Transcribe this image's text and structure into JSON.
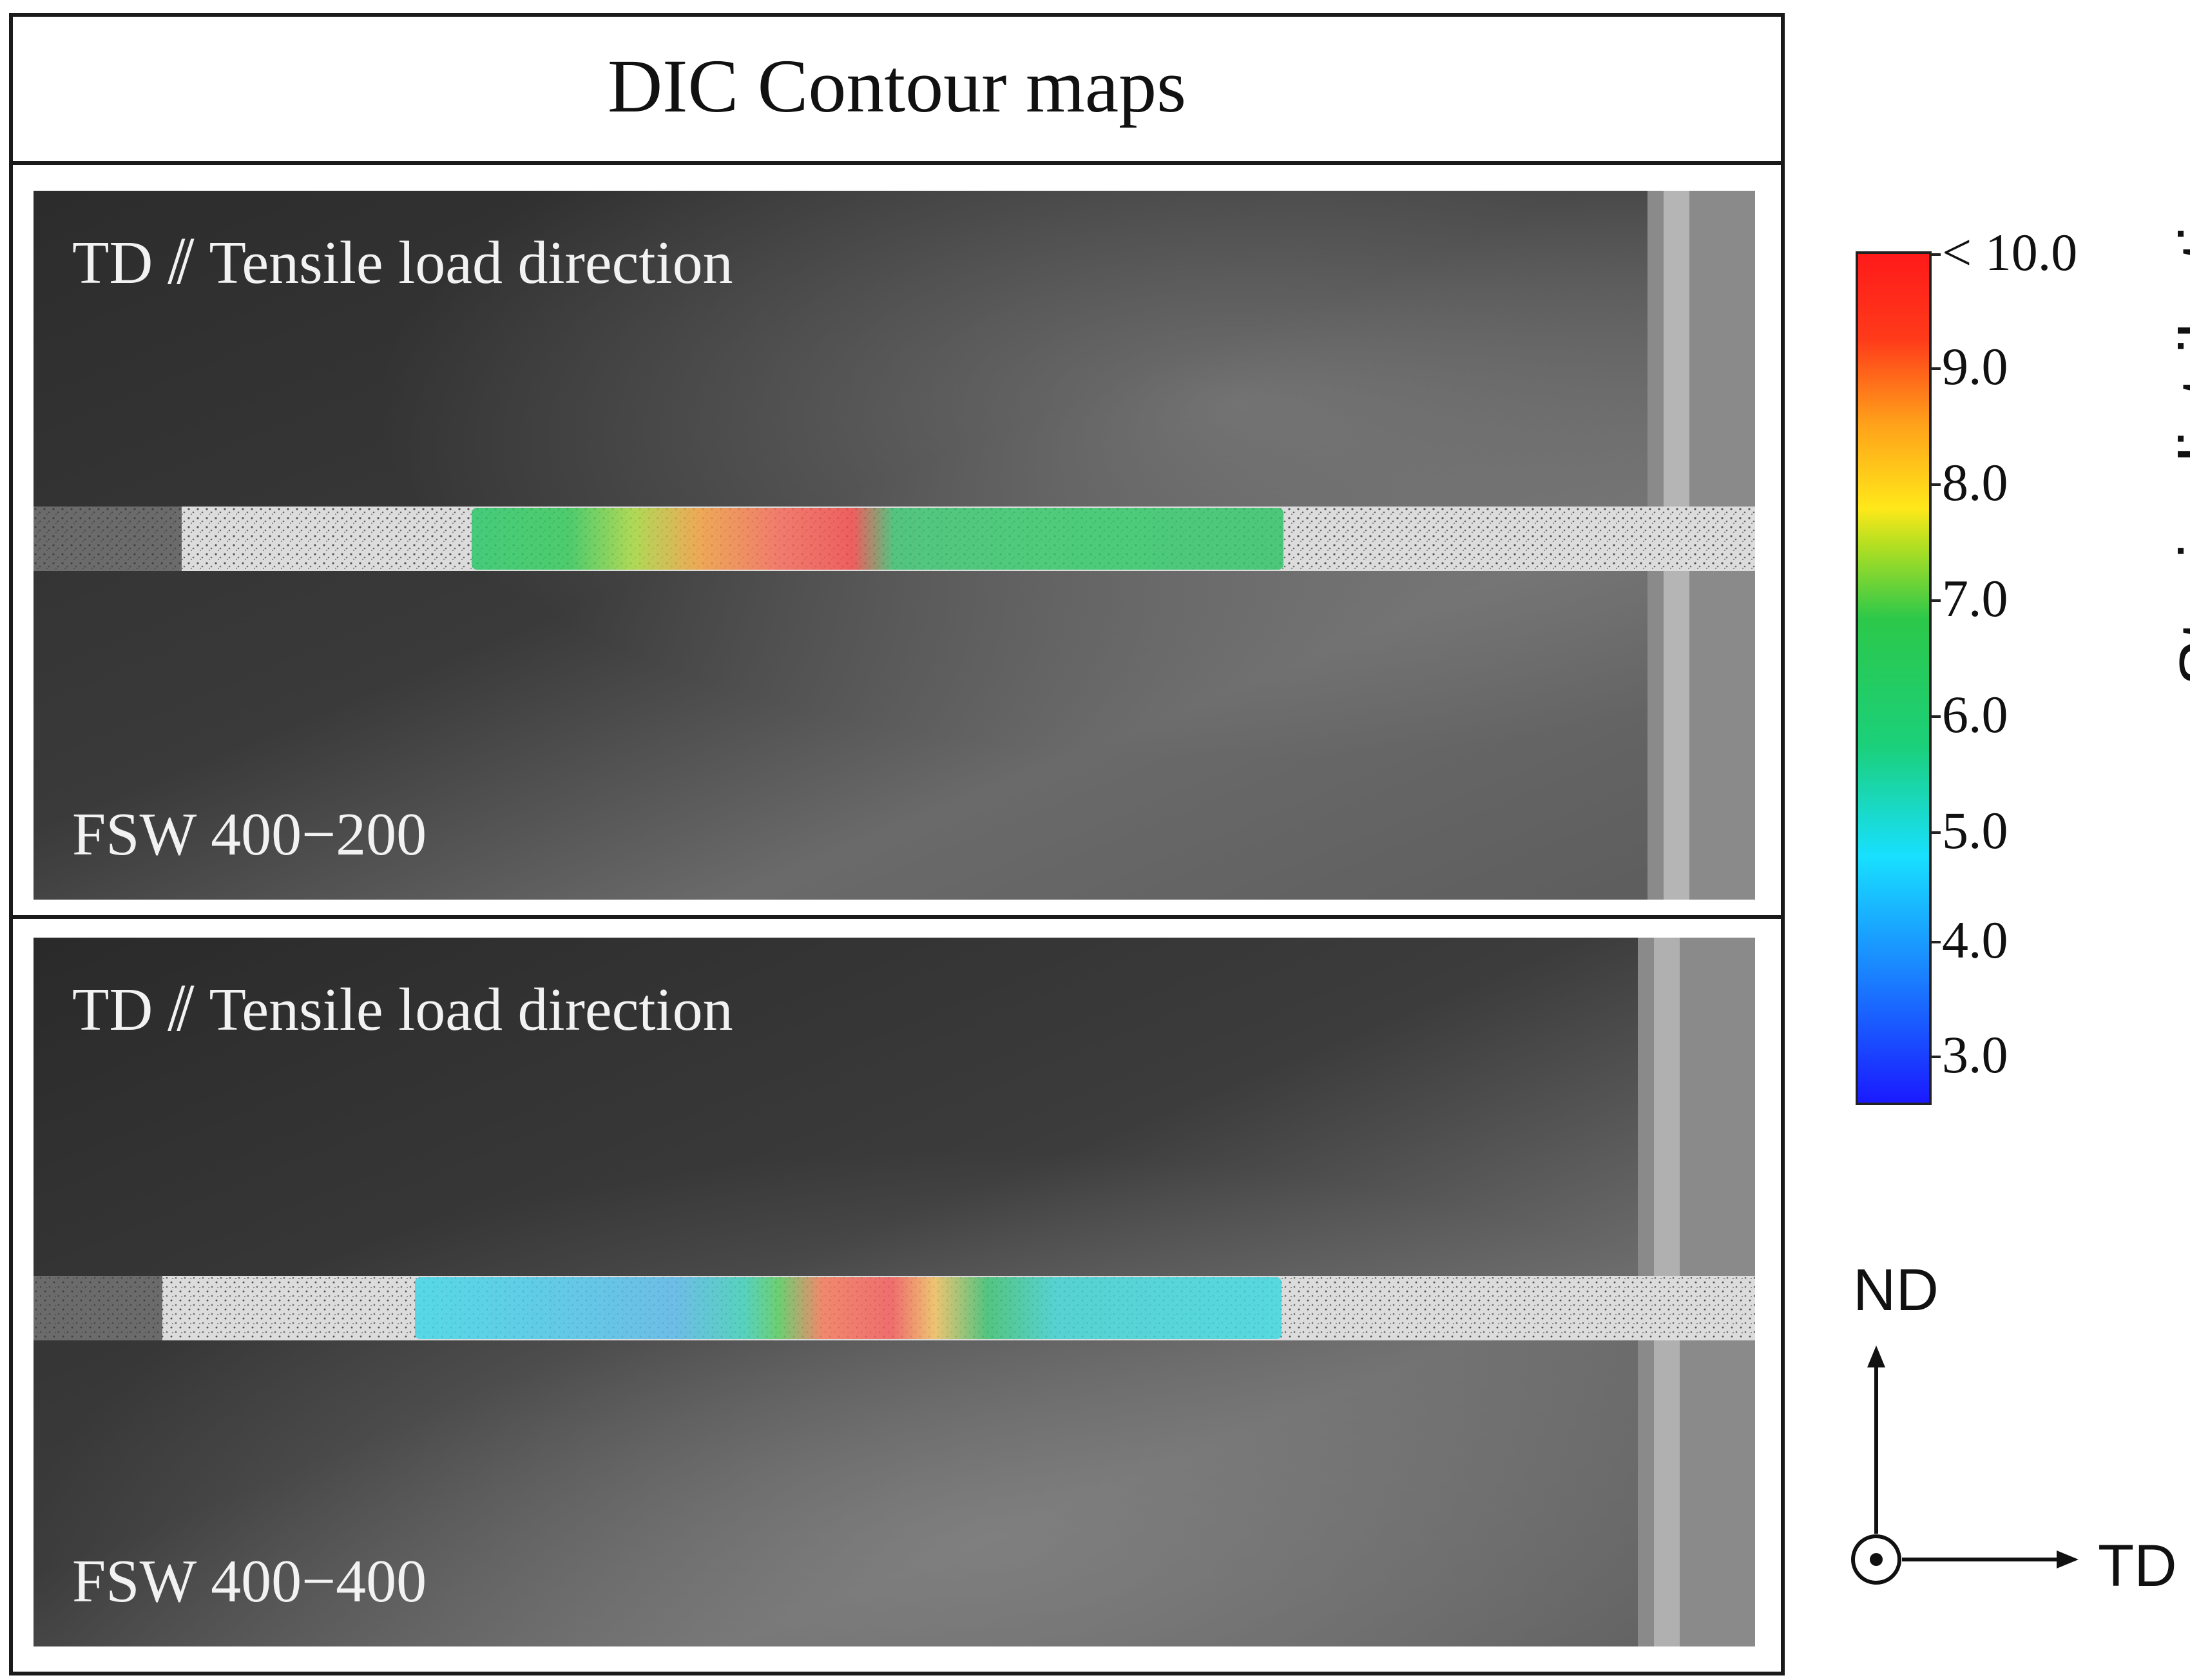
{
  "title": "DIC Contour maps",
  "panels": [
    {
      "direction_label": "TD ⫽ Tensile load direction",
      "sample_label": "FSW 400−200"
    },
    {
      "direction_label": "TD ⫽ Tensile load direction",
      "sample_label": "FSW 400−400"
    }
  ],
  "colorbar": {
    "label": "Strain distribution",
    "ticks": [
      "< 10.0",
      "9.0",
      "8.0",
      "7.0",
      "6.0",
      "5.0",
      "4.0",
      "3.0"
    ],
    "colors": {
      "min": "#1a1aff",
      "mid": "#2cc84a",
      "max": "#ff1a1a"
    }
  },
  "axes_indicator": {
    "vertical": "ND",
    "horizontal": "TD",
    "out_of_plane_icon": "dot-in-circle-icon"
  }
}
